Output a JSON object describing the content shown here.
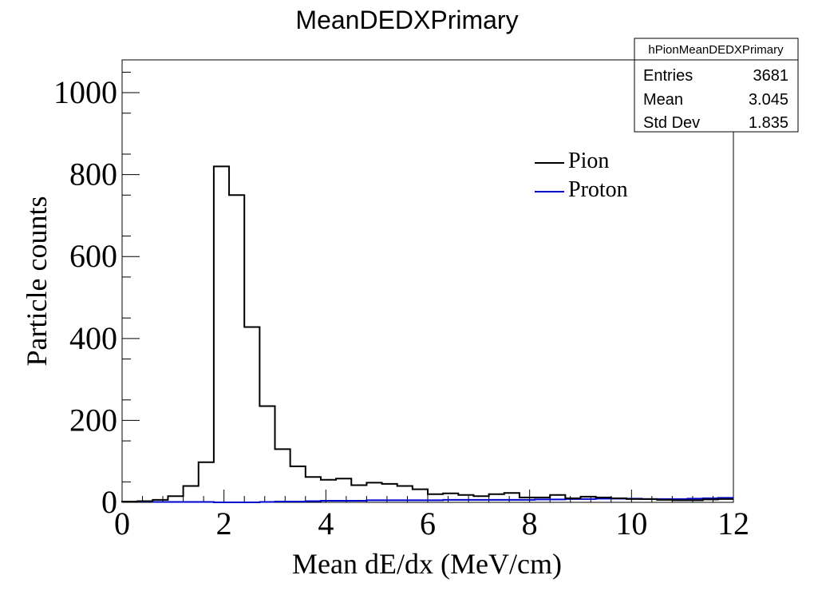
{
  "chart_data": {
    "type": "histogram",
    "title": "MeanDEDXPrimary",
    "xlabel": "Mean dE/dx (MeV/cm)",
    "ylabel": "Particle counts",
    "xlim": [
      0,
      12
    ],
    "ylim": [
      0,
      1080
    ],
    "x_ticks": [
      "0",
      "2",
      "4",
      "6",
      "8",
      "10",
      "12"
    ],
    "y_ticks": [
      "0",
      "200",
      "400",
      "600",
      "800",
      "1000"
    ],
    "bin_edges": [
      0,
      0.3,
      0.6,
      0.9,
      1.2,
      1.5,
      1.8,
      2.1,
      2.4,
      2.7,
      3.0,
      3.3,
      3.6,
      3.9,
      4.2,
      4.5,
      4.8,
      5.1,
      5.4,
      5.7,
      6.0,
      6.3,
      6.6,
      6.9,
      7.2,
      7.5,
      7.8,
      8.1,
      8.4,
      8.7,
      9.0,
      9.3,
      9.6,
      9.9,
      10.2,
      10.5,
      10.8,
      11.1,
      11.4,
      11.7,
      12.0
    ],
    "series": [
      {
        "name": "Pion",
        "color": "#000000",
        "values": [
          2,
          3,
          6,
          15,
          40,
          98,
          820,
          750,
          428,
          235,
          130,
          88,
          62,
          55,
          58,
          42,
          48,
          45,
          40,
          32,
          20,
          22,
          18,
          15,
          20,
          23,
          12,
          12,
          18,
          10,
          14,
          12,
          10,
          8,
          8,
          6,
          5,
          5,
          7,
          8
        ]
      },
      {
        "name": "Proton",
        "color": "#0000cc",
        "values": [
          2,
          2,
          1,
          1,
          1,
          1,
          0,
          0,
          0,
          1,
          2,
          2,
          3,
          4,
          4,
          4,
          5,
          5,
          5,
          5,
          5,
          6,
          6,
          6,
          6,
          6,
          6,
          7,
          7,
          8,
          8,
          9,
          9,
          9,
          8,
          8,
          8,
          9,
          10,
          11
        ]
      }
    ],
    "legend": {
      "position": "top-right",
      "entries": [
        "Pion",
        "Proton"
      ]
    },
    "stats_box": {
      "name": "hPionMeanDEDXPrimary",
      "rows": [
        {
          "label": "Entries",
          "value": "3681"
        },
        {
          "label": "Mean",
          "value": "3.045"
        },
        {
          "label": "Std Dev",
          "value": "1.835"
        }
      ]
    },
    "grid": false
  }
}
